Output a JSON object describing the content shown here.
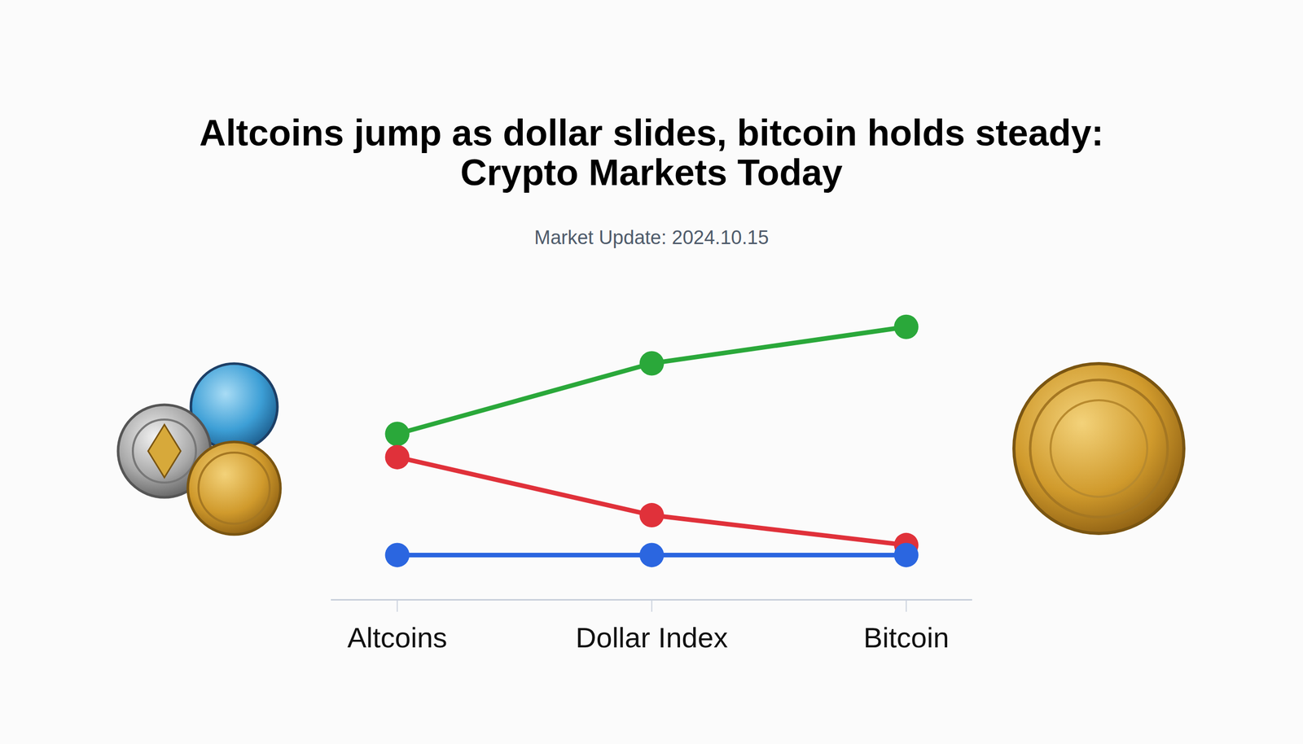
{
  "chart_data": {
    "type": "line",
    "title": "Altcoins jump as dollar slides, bitcoin holds steady: Crypto Markets Today",
    "subtitle": "Market Update: 2024.10.15",
    "categories": [
      "Altcoins",
      "Dollar Index",
      "Bitcoin"
    ],
    "series": [
      {
        "color": "#2aa83a",
        "marker": "circle",
        "values": [
          200,
          285,
          329
        ]
      },
      {
        "color": "#e0313a",
        "marker": "circle",
        "values": [
          172,
          102,
          66
        ]
      },
      {
        "color": "#2b66e0",
        "marker": "circle",
        "values": [
          54,
          54,
          54
        ]
      }
    ],
    "ylim": [
      0,
      350
    ],
    "tick_labels": "x",
    "grid": false
  }
}
